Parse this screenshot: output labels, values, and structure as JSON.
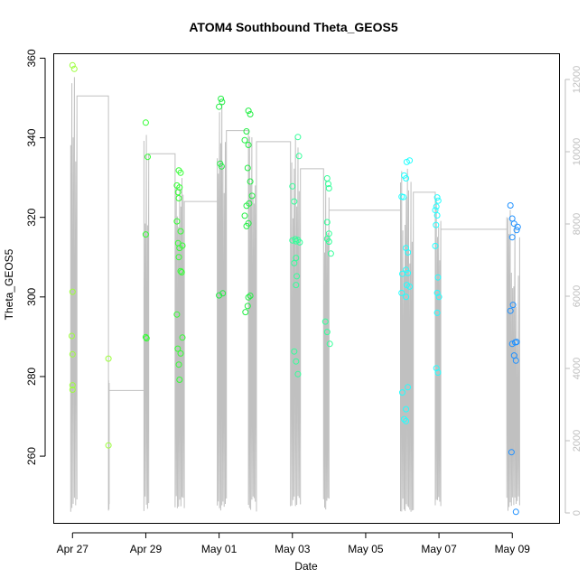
{
  "chart_data": {
    "type": "scatter",
    "title": "ATOM4 Southbound Theta_GEOS5",
    "xlabel": "Date",
    "ylabel": "Theta_GEOS5",
    "x_ticks": [
      {
        "day": 0,
        "label": "Apr 27"
      },
      {
        "day": 2,
        "label": "Apr 29"
      },
      {
        "day": 4,
        "label": "May 01"
      },
      {
        "day": 6,
        "label": "May 03"
      },
      {
        "day": 8,
        "label": "May 05"
      },
      {
        "day": 10,
        "label": "May 07"
      },
      {
        "day": 12,
        "label": "May 09"
      }
    ],
    "xlim_days": [
      -0.5,
      13.3
    ],
    "y_ticks": [
      260,
      280,
      300,
      320,
      340,
      360
    ],
    "ylim": [
      243,
      361
    ],
    "y2_ticks": [
      0,
      2000,
      4000,
      6000,
      8000,
      10000,
      12000
    ],
    "y2lim": [
      -300,
      12700
    ],
    "grid": false,
    "legend": "none",
    "flight_ranges": [
      {
        "start": -0.05,
        "end": 0.12,
        "min": 275.5,
        "max": 358.5
      },
      {
        "start": 0.98,
        "end": 1.0,
        "min": 262.7,
        "max": 284.5
      },
      {
        "start": 1.95,
        "end": 2.08,
        "min": 289.6,
        "max": 344.0
      },
      {
        "start": 2.8,
        "end": 3.05,
        "min": 279.2,
        "max": 332.0
      },
      {
        "start": 3.95,
        "end": 4.2,
        "min": 300.2,
        "max": 349.8
      },
      {
        "start": 4.8,
        "end": 5.02,
        "min": 296.2,
        "max": 347.0
      },
      {
        "start": 5.95,
        "end": 6.22,
        "min": 280.6,
        "max": 340.2
      },
      {
        "start": 6.85,
        "end": 7.0,
        "min": 288.2,
        "max": 329.8
      },
      {
        "start": 8.95,
        "end": 9.3,
        "min": 268.8,
        "max": 334.3
      },
      {
        "start": 9.9,
        "end": 10.05,
        "min": 281.0,
        "max": 325.0
      },
      {
        "start": 11.85,
        "end": 12.2,
        "min": 246.0,
        "max": 323.0
      }
    ],
    "series": [
      {
        "values": [
          [
            0.0,
            358.2
          ],
          [
            0.05,
            357.3
          ],
          [
            0.0,
            301.3
          ],
          [
            -0.02,
            290.2
          ],
          [
            0.0,
            285.6
          ],
          [
            0.0,
            277.8
          ],
          [
            0.0,
            276.7
          ],
          [
            0.98,
            284.5
          ],
          [
            0.98,
            262.7
          ]
        ]
      },
      {
        "values": [
          [
            2.0,
            343.8
          ],
          [
            2.05,
            335.2
          ],
          [
            2.0,
            315.7
          ],
          [
            2.0,
            289.9
          ],
          [
            2.02,
            289.6
          ],
          [
            2.85,
            328.0
          ],
          [
            2.9,
            331.8
          ],
          [
            2.92,
            327.5
          ],
          [
            2.88,
            326.3
          ],
          [
            2.95,
            331.2
          ],
          [
            2.9,
            324.8
          ],
          [
            2.85,
            319.0
          ],
          [
            2.95,
            316.5
          ],
          [
            2.88,
            313.5
          ],
          [
            3.0,
            312.9
          ],
          [
            2.92,
            312.3
          ],
          [
            2.9,
            310.0
          ],
          [
            2.95,
            306.5
          ],
          [
            2.98,
            306.2
          ],
          [
            2.85,
            295.6
          ],
          [
            3.0,
            289.8
          ],
          [
            2.87,
            287.0
          ],
          [
            2.95,
            285.8
          ],
          [
            2.9,
            283.0
          ],
          [
            2.92,
            279.2
          ]
        ]
      },
      {
        "values": [
          [
            4.05,
            349.8
          ],
          [
            4.08,
            349.0
          ],
          [
            4.0,
            347.8
          ],
          [
            4.03,
            333.5
          ],
          [
            4.07,
            332.8
          ],
          [
            4.1,
            300.9
          ],
          [
            4.0,
            300.4
          ],
          [
            4.8,
            346.8
          ],
          [
            4.85,
            345.9
          ],
          [
            4.75,
            341.6
          ],
          [
            4.7,
            339.4
          ],
          [
            4.8,
            338.2
          ],
          [
            4.78,
            332.4
          ],
          [
            4.85,
            329.0
          ],
          [
            4.9,
            325.4
          ],
          [
            4.82,
            323.5
          ],
          [
            4.75,
            322.9
          ],
          [
            4.7,
            320.4
          ],
          [
            4.8,
            318.5
          ],
          [
            4.75,
            317.8
          ],
          [
            4.85,
            300.3
          ],
          [
            4.8,
            299.9
          ],
          [
            4.78,
            297.7
          ],
          [
            4.72,
            296.2
          ]
        ]
      },
      {
        "values": [
          [
            6.15,
            340.2
          ],
          [
            6.18,
            335.4
          ],
          [
            6.0,
            327.8
          ],
          [
            6.05,
            324.0
          ],
          [
            6.08,
            314.5
          ],
          [
            6.0,
            314.2
          ],
          [
            6.1,
            314.0
          ],
          [
            6.15,
            314.3
          ],
          [
            6.2,
            313.7
          ],
          [
            6.1,
            309.8
          ],
          [
            6.05,
            308.5
          ],
          [
            6.12,
            305.2
          ],
          [
            6.1,
            303.0
          ],
          [
            6.05,
            286.3
          ],
          [
            6.1,
            283.8
          ],
          [
            6.15,
            280.6
          ],
          [
            6.95,
            329.8
          ],
          [
            6.98,
            328.4
          ],
          [
            7.0,
            327.3
          ],
          [
            6.95,
            318.8
          ],
          [
            6.95,
            314.6
          ],
          [
            7.0,
            313.9
          ],
          [
            7.0,
            315.9
          ],
          [
            7.05,
            310.9
          ],
          [
            6.9,
            293.8
          ],
          [
            6.95,
            291.2
          ],
          [
            7.02,
            288.2
          ]
        ]
      },
      {
        "values": [
          [
            9.2,
            334.3
          ],
          [
            9.12,
            333.9
          ],
          [
            9.05,
            330.5
          ],
          [
            9.1,
            329.8
          ],
          [
            8.98,
            325.2
          ],
          [
            9.03,
            325.1
          ],
          [
            9.1,
            312.3
          ],
          [
            9.15,
            311.2
          ],
          [
            9.1,
            306.8
          ],
          [
            9.15,
            306.0
          ],
          [
            9.0,
            305.8
          ],
          [
            9.12,
            303.0
          ],
          [
            9.2,
            302.6
          ],
          [
            8.98,
            301.0
          ],
          [
            9.1,
            300.0
          ],
          [
            9.15,
            277.3
          ],
          [
            9.0,
            276.0
          ],
          [
            9.1,
            271.8
          ],
          [
            9.05,
            269.3
          ],
          [
            9.1,
            268.8
          ],
          [
            9.95,
            325.0
          ],
          [
            9.98,
            324.2
          ],
          [
            9.93,
            322.7
          ],
          [
            9.9,
            321.8
          ],
          [
            9.95,
            320.5
          ],
          [
            9.92,
            318.1
          ],
          [
            9.9,
            312.8
          ],
          [
            9.97,
            304.9
          ],
          [
            9.95,
            301.0
          ],
          [
            10.0,
            300.0
          ],
          [
            9.95,
            296.0
          ],
          [
            9.93,
            282.1
          ],
          [
            9.97,
            281.0
          ]
        ]
      },
      {
        "values": [
          [
            11.95,
            323.0
          ],
          [
            12.0,
            319.7
          ],
          [
            12.05,
            318.4
          ],
          [
            12.15,
            317.6
          ],
          [
            12.12,
            316.8
          ],
          [
            12.0,
            315.0
          ],
          [
            12.02,
            298.0
          ],
          [
            11.95,
            296.5
          ],
          [
            12.08,
            288.6
          ],
          [
            12.0,
            288.2
          ],
          [
            12.12,
            288.7
          ],
          [
            12.05,
            285.3
          ],
          [
            12.1,
            284.0
          ],
          [
            11.98,
            261.0
          ],
          [
            12.1,
            246.0
          ]
        ]
      }
    ],
    "colors": {
      "series": [
        "#9cff3b",
        "#33ff33",
        "#22ee44",
        "#33ff99",
        "#22ffff",
        "#1e90ff"
      ],
      "altitude": "#c0c0c0",
      "axis": "#000000",
      "right_axis": "#bebebe"
    }
  }
}
